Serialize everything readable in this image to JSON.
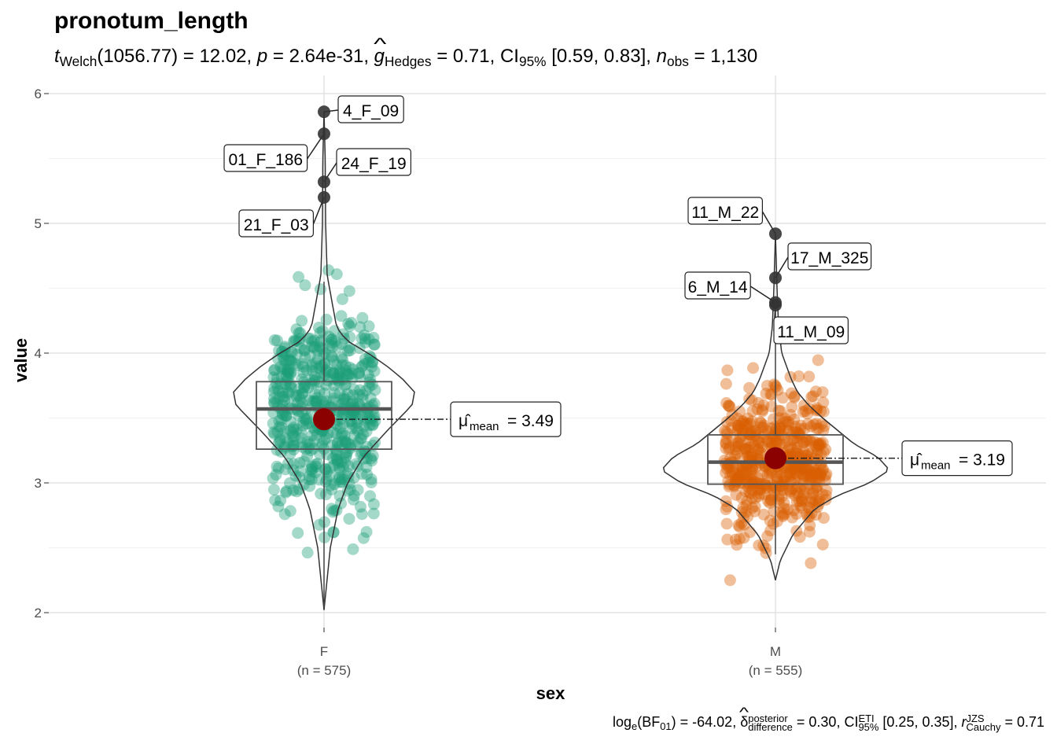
{
  "title": "pronotum_length",
  "subtitle": {
    "welch_label": "Welch",
    "df": "(1056.77)",
    "t_value": "12.02",
    "p_label": "p",
    "p_value": "2.64e-31",
    "effect_sub": "Hedges",
    "effect_value": "0.71",
    "ci_sub": "95%",
    "ci_value": "[0.59, 0.83]",
    "n_sub": "obs",
    "n_value": "1,130"
  },
  "caption": {
    "bf_sub": "01",
    "bf_value": "-64.02",
    "delta_sup": "posterior",
    "delta_sub": "difference",
    "delta_value": "0.30",
    "ci_sup": "ETI",
    "ci_sub": "95%",
    "ci_value": "[0.25, 0.35]",
    "r_sup": "JZS",
    "r_sub": "Cauchy",
    "r_value": "0.71"
  },
  "chart_data": {
    "type": "violin-box-scatter",
    "xlabel": "sex",
    "ylabel": "value",
    "ylim": [
      2,
      6
    ],
    "yticks": [
      2,
      3,
      4,
      5,
      6
    ],
    "grid": true,
    "groups": [
      {
        "name": "F",
        "n_label": "(n = 575)",
        "color": "#1b9e77",
        "n": 575,
        "box": {
          "q1": 3.26,
          "median": 3.57,
          "q3": 3.78,
          "whisker_low": 2.04,
          "whisker_high": 4.55
        },
        "mean": 3.49,
        "mean_label": "3.49",
        "range": [
          2.02,
          5.86
        ],
        "outliers": [
          {
            "y": 5.86,
            "label": "4_F_09"
          },
          {
            "y": 5.69,
            "label": "01_F_186"
          },
          {
            "y": 5.32,
            "label": "24_F_19"
          },
          {
            "y": 5.2,
            "label": "21_F_03"
          }
        ]
      },
      {
        "name": "M",
        "n_label": "(n = 555)",
        "color": "#d95f02",
        "n": 555,
        "box": {
          "q1": 2.99,
          "median": 3.16,
          "q3": 3.37,
          "whisker_low": 2.45,
          "whisker_high": 4.35
        },
        "mean": 3.19,
        "mean_label": "3.19",
        "range": [
          2.25,
          4.92
        ],
        "outliers": [
          {
            "y": 4.92,
            "label": "11_M_22"
          },
          {
            "y": 4.58,
            "label": "17_M_325"
          },
          {
            "y": 4.39,
            "label": "6_M_14"
          },
          {
            "y": 4.37,
            "label": "11_M_09"
          }
        ]
      }
    ],
    "mean_color": "#8b0000",
    "mean_label_prefix": "mean"
  }
}
